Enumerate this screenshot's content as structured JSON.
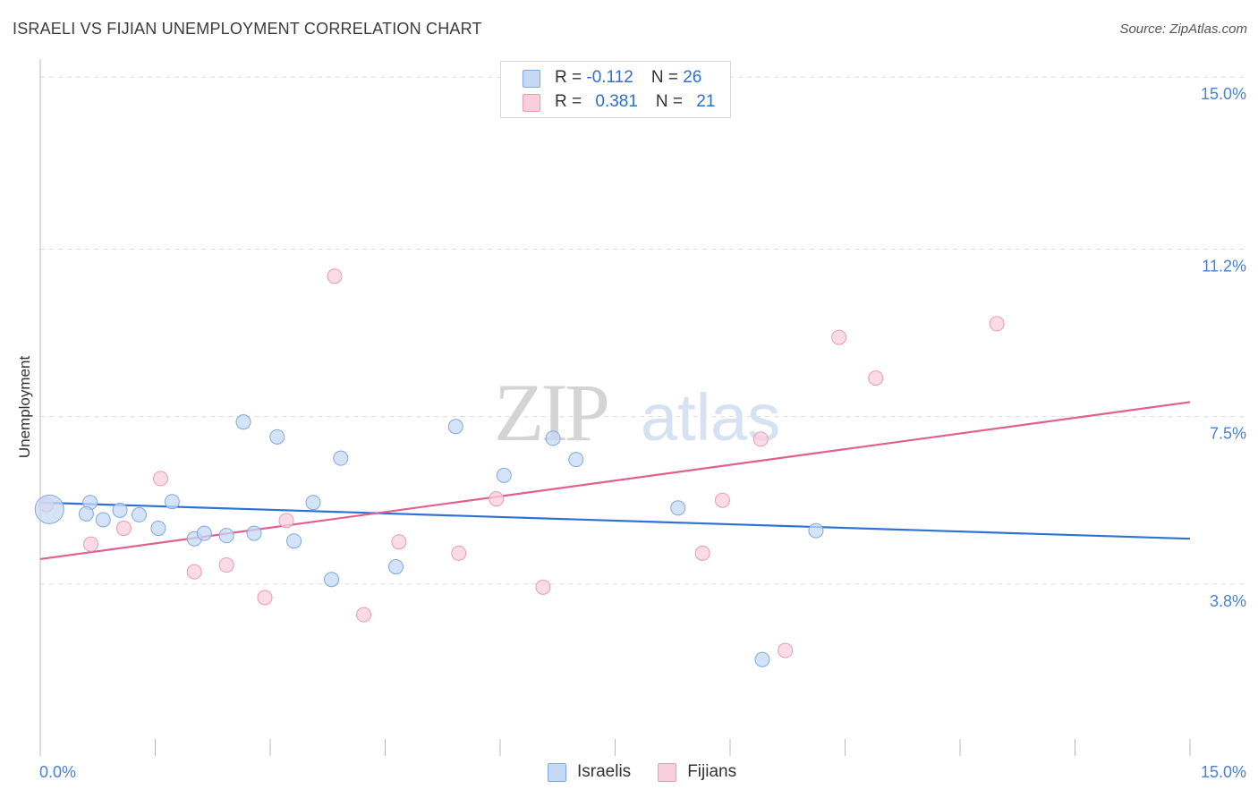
{
  "header": {
    "title": "ISRAELI VS FIJIAN UNEMPLOYMENT CORRELATION CHART",
    "source": "Source: ZipAtlas.com"
  },
  "legend": {
    "israelis": {
      "r_label": "R = ",
      "r_value": "-0.112",
      "n_label": "N = ",
      "n_value": "26"
    },
    "fijians": {
      "r_label": "R = ",
      "r_value": "0.381",
      "n_label": "N = ",
      "n_value": "21"
    }
  },
  "bottom_legend": {
    "israelis": "Israelis",
    "fijians": "Fijians"
  },
  "watermark": {
    "zip": "ZIP",
    "atlas": "atlas"
  },
  "colors": {
    "israelis_fill": "#c5d9f5",
    "israelis_stroke": "#7fa8e0",
    "israelis_line": "#2f72d4",
    "fijians_fill": "#f9cfdc",
    "fijians_stroke": "#ea9ab5",
    "fijians_line": "#e0608f",
    "tick_text": "#4a80d0"
  },
  "chart_data": {
    "type": "scatter",
    "title": "ISRAELI VS FIJIAN UNEMPLOYMENT CORRELATION CHART",
    "xlabel": "",
    "ylabel": "Unemployment",
    "xlim": [
      0,
      15
    ],
    "ylim": [
      0,
      15.4
    ],
    "x_tick_labels": [
      "0.0%",
      "15.0%"
    ],
    "y_ticks": [
      {
        "value": 3.8,
        "label": "3.8%"
      },
      {
        "value": 7.5,
        "label": "7.5%"
      },
      {
        "value": 11.2,
        "label": "11.2%"
      },
      {
        "value": 15.0,
        "label": "15.0%"
      }
    ],
    "grid": "horizontal dashed",
    "legend_position": "top-center",
    "series": [
      {
        "name": "Israelis",
        "color": "#2f72d4",
        "trend": {
          "x": [
            0,
            15
          ],
          "y": [
            5.6,
            4.8
          ]
        },
        "points": [
          {
            "x": 0.12,
            "y": 5.45,
            "big": true
          },
          {
            "x": 0.65,
            "y": 5.6
          },
          {
            "x": 0.6,
            "y": 5.35
          },
          {
            "x": 0.82,
            "y": 5.22
          },
          {
            "x": 1.04,
            "y": 5.43
          },
          {
            "x": 1.29,
            "y": 5.33
          },
          {
            "x": 1.54,
            "y": 5.03
          },
          {
            "x": 1.72,
            "y": 5.62
          },
          {
            "x": 2.01,
            "y": 4.8
          },
          {
            "x": 2.14,
            "y": 4.92
          },
          {
            "x": 2.43,
            "y": 4.87
          },
          {
            "x": 2.65,
            "y": 7.38
          },
          {
            "x": 2.79,
            "y": 4.92
          },
          {
            "x": 3.09,
            "y": 7.05
          },
          {
            "x": 3.31,
            "y": 4.75
          },
          {
            "x": 3.56,
            "y": 5.6
          },
          {
            "x": 3.8,
            "y": 3.9
          },
          {
            "x": 3.92,
            "y": 6.58
          },
          {
            "x": 4.64,
            "y": 4.18
          },
          {
            "x": 5.42,
            "y": 7.28
          },
          {
            "x": 6.05,
            "y": 6.2
          },
          {
            "x": 6.69,
            "y": 7.02
          },
          {
            "x": 6.99,
            "y": 6.55
          },
          {
            "x": 8.32,
            "y": 5.48
          },
          {
            "x": 9.42,
            "y": 2.13
          },
          {
            "x": 10.12,
            "y": 4.98
          }
        ]
      },
      {
        "name": "Fijians",
        "color": "#e0608f",
        "trend": {
          "x": [
            0,
            15
          ],
          "y": [
            4.35,
            7.82
          ]
        },
        "points": [
          {
            "x": 0.08,
            "y": 5.55
          },
          {
            "x": 0.66,
            "y": 4.68
          },
          {
            "x": 1.09,
            "y": 5.03
          },
          {
            "x": 1.57,
            "y": 6.13
          },
          {
            "x": 2.01,
            "y": 4.07
          },
          {
            "x": 2.43,
            "y": 4.22
          },
          {
            "x": 2.93,
            "y": 3.5
          },
          {
            "x": 3.21,
            "y": 5.2
          },
          {
            "x": 3.84,
            "y": 10.6
          },
          {
            "x": 4.22,
            "y": 3.12
          },
          {
            "x": 4.68,
            "y": 4.73
          },
          {
            "x": 5.46,
            "y": 4.48
          },
          {
            "x": 5.95,
            "y": 5.68
          },
          {
            "x": 6.56,
            "y": 3.73
          },
          {
            "x": 8.64,
            "y": 4.48
          },
          {
            "x": 8.9,
            "y": 5.65
          },
          {
            "x": 9.4,
            "y": 7.0
          },
          {
            "x": 9.72,
            "y": 2.33
          },
          {
            "x": 10.42,
            "y": 9.25
          },
          {
            "x": 10.9,
            "y": 8.35
          },
          {
            "x": 12.48,
            "y": 9.55
          }
        ]
      }
    ]
  }
}
